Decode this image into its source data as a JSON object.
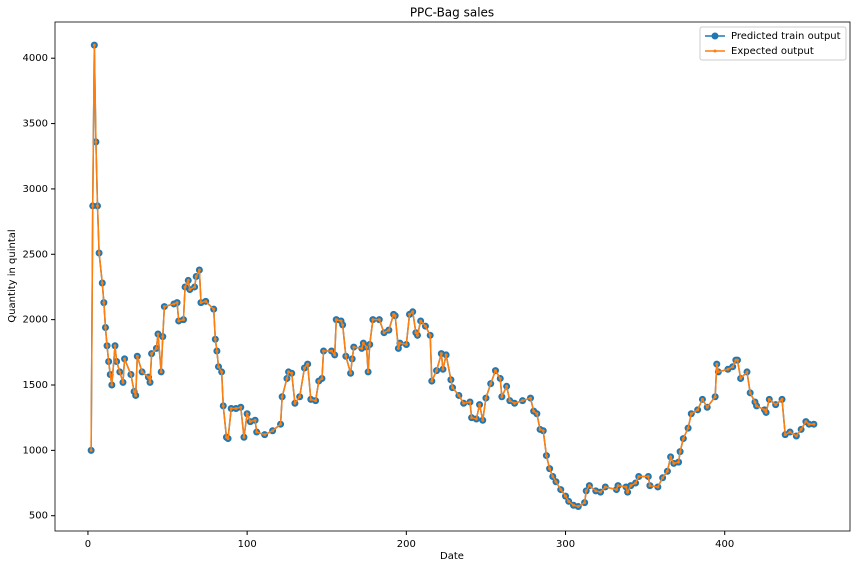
{
  "chart_data": {
    "type": "line",
    "title": "PPC-Bag sales",
    "x_label": "Date",
    "y_label": "Quantity in quintal",
    "xlim": [
      -20.7,
      478.7
    ],
    "ylim": [
      383,
      4277
    ],
    "xticks": [
      0,
      100,
      200,
      300,
      400
    ],
    "yticks": [
      500,
      1000,
      1500,
      2000,
      2500,
      3000,
      3500,
      4000
    ],
    "legend": "upper right",
    "x": [
      2,
      3,
      4,
      5,
      6,
      7,
      9,
      10,
      11,
      12,
      13,
      14,
      15,
      17,
      18,
      20,
      22,
      23,
      27,
      29,
      30,
      31,
      34,
      38,
      39,
      40,
      43,
      44,
      46,
      47,
      48,
      54,
      56,
      57,
      60,
      61,
      63,
      64,
      67,
      68,
      70,
      71,
      74,
      79,
      80,
      81,
      82,
      84,
      85,
      87,
      88,
      90,
      93,
      96,
      98,
      100,
      102,
      105,
      106,
      111,
      116,
      121,
      122,
      125,
      126,
      128,
      130,
      133,
      136,
      138,
      140,
      143,
      145,
      147,
      148,
      153,
      155,
      156,
      159,
      160,
      162,
      165,
      166,
      167,
      172,
      173,
      175,
      176,
      177,
      179,
      183,
      186,
      189,
      192,
      193,
      195,
      196,
      200,
      202,
      204,
      206,
      207,
      209,
      212,
      215,
      216,
      219,
      222,
      223,
      225,
      228,
      229,
      233,
      236,
      240,
      241,
      244,
      246,
      248,
      250,
      253,
      256,
      259,
      260,
      263,
      265,
      268,
      273,
      278,
      280,
      282,
      284,
      286,
      288,
      290,
      292,
      294,
      297,
      300,
      302,
      305,
      308,
      312,
      313,
      315,
      319,
      322,
      325,
      332,
      333,
      338,
      339,
      341,
      344,
      346,
      352,
      353,
      358,
      361,
      364,
      366,
      368,
      371,
      372,
      374,
      377,
      379,
      383,
      386,
      389,
      394,
      395,
      396,
      402,
      405,
      407,
      408,
      410,
      414,
      416,
      419,
      420,
      425,
      426,
      428,
      432,
      436,
      438,
      441,
      445,
      448,
      451,
      453,
      456
    ],
    "series": [
      {
        "name": "Predicted train output",
        "color": "#1f77b4",
        "marker": "circle",
        "values": [
          1000,
          2870,
          4100,
          3360,
          2870,
          2510,
          2280,
          2130,
          1940,
          1800,
          1680,
          1580,
          1500,
          1800,
          1680,
          1600,
          1520,
          1700,
          1580,
          1450,
          1420,
          1720,
          1600,
          1560,
          1520,
          1740,
          1780,
          1890,
          1600,
          1870,
          2100,
          2120,
          2130,
          1990,
          2000,
          2250,
          2300,
          2230,
          2250,
          2330,
          2380,
          2130,
          2140,
          2080,
          1850,
          1760,
          1640,
          1600,
          1340,
          1100,
          1090,
          1320,
          1320,
          1330,
          1100,
          1280,
          1220,
          1230,
          1140,
          1120,
          1150,
          1200,
          1410,
          1550,
          1600,
          1590,
          1360,
          1410,
          1630,
          1660,
          1390,
          1380,
          1530,
          1550,
          1760,
          1760,
          1730,
          2000,
          1990,
          1960,
          1720,
          1590,
          1700,
          1790,
          1780,
          1820,
          1790,
          1600,
          1810,
          2000,
          2000,
          1900,
          1920,
          2040,
          2030,
          1780,
          1820,
          1810,
          2040,
          2060,
          1900,
          1880,
          1990,
          1950,
          1880,
          1530,
          1610,
          1740,
          1620,
          1730,
          1540,
          1480,
          1420,
          1360,
          1370,
          1250,
          1240,
          1350,
          1230,
          1400,
          1510,
          1610,
          1550,
          1410,
          1490,
          1380,
          1360,
          1380,
          1400,
          1300,
          1280,
          1160,
          1150,
          960,
          860,
          800,
          760,
          700,
          650,
          610,
          580,
          570,
          600,
          690,
          730,
          690,
          680,
          720,
          700,
          730,
          720,
          680,
          730,
          750,
          800,
          800,
          730,
          720,
          790,
          840,
          950,
          900,
          910,
          990,
          1090,
          1170,
          1280,
          1310,
          1390,
          1330,
          1410,
          1660,
          1600,
          1620,
          1640,
          1690,
          1690,
          1550,
          1600,
          1440,
          1370,
          1340,
          1310,
          1290,
          1390,
          1350,
          1390,
          1120,
          1140,
          1110,
          1160,
          1220,
          1200,
          1200
        ]
      },
      {
        "name": "Expected output",
        "color": "#ff7f0e",
        "marker": "point",
        "values": [
          1000,
          2870,
          4100,
          3360,
          2870,
          2510,
          2280,
          2130,
          1940,
          1800,
          1680,
          1580,
          1500,
          1800,
          1680,
          1600,
          1520,
          1700,
          1580,
          1450,
          1420,
          1720,
          1600,
          1560,
          1520,
          1740,
          1780,
          1890,
          1600,
          1870,
          2100,
          2120,
          2130,
          1990,
          2000,
          2250,
          2300,
          2230,
          2250,
          2330,
          2380,
          2130,
          2140,
          2080,
          1850,
          1760,
          1640,
          1600,
          1340,
          1100,
          1090,
          1320,
          1320,
          1330,
          1100,
          1280,
          1220,
          1230,
          1140,
          1120,
          1150,
          1200,
          1410,
          1550,
          1600,
          1590,
          1360,
          1410,
          1630,
          1660,
          1390,
          1380,
          1530,
          1550,
          1760,
          1760,
          1730,
          2000,
          1990,
          1960,
          1720,
          1590,
          1700,
          1790,
          1780,
          1820,
          1790,
          1600,
          1810,
          2000,
          2000,
          1900,
          1920,
          2040,
          2030,
          1780,
          1820,
          1810,
          2040,
          2060,
          1900,
          1880,
          1990,
          1950,
          1880,
          1530,
          1610,
          1740,
          1620,
          1730,
          1540,
          1480,
          1420,
          1360,
          1370,
          1250,
          1240,
          1350,
          1230,
          1400,
          1510,
          1610,
          1550,
          1410,
          1490,
          1380,
          1360,
          1380,
          1400,
          1300,
          1280,
          1160,
          1150,
          960,
          860,
          800,
          760,
          700,
          650,
          610,
          580,
          570,
          600,
          690,
          730,
          690,
          680,
          720,
          700,
          730,
          720,
          680,
          730,
          750,
          800,
          800,
          730,
          720,
          790,
          840,
          950,
          900,
          910,
          990,
          1090,
          1170,
          1280,
          1310,
          1390,
          1330,
          1410,
          1660,
          1600,
          1620,
          1640,
          1690,
          1690,
          1550,
          1600,
          1440,
          1370,
          1340,
          1310,
          1290,
          1390,
          1350,
          1390,
          1120,
          1140,
          1110,
          1160,
          1220,
          1200,
          1200
        ]
      }
    ]
  }
}
